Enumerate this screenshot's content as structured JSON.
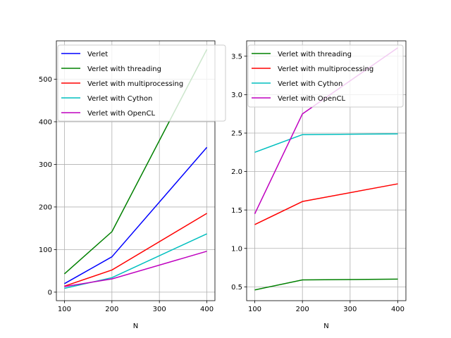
{
  "chart_data": [
    {
      "type": "line",
      "title": "",
      "xlabel": "N",
      "ylabel": "",
      "x": [
        100,
        200,
        400
      ],
      "xlim": [
        83,
        417
      ],
      "ylim": [
        -20,
        590
      ],
      "xticks": [
        100,
        200,
        300,
        400
      ],
      "yticks": [
        0,
        100,
        200,
        300,
        400,
        500
      ],
      "grid": true,
      "legend_position": "top-left",
      "series": [
        {
          "name": "Verlet",
          "color": "#0000ff",
          "values": [
            20,
            83,
            340
          ]
        },
        {
          "name": "Verlet with threading",
          "color": "#008000",
          "values": [
            43,
            142,
            570
          ]
        },
        {
          "name": "Verlet with multiprocessing",
          "color": "#ff0000",
          "values": [
            14,
            52,
            185
          ]
        },
        {
          "name": "Verlet with Cython",
          "color": "#00bfbf",
          "values": [
            9,
            34,
            137
          ]
        },
        {
          "name": "Verlet with OpenCL",
          "color": "#bf00bf",
          "values": [
            13,
            31,
            96
          ]
        }
      ]
    },
    {
      "type": "line",
      "title": "",
      "xlabel": "N",
      "ylabel": "",
      "x": [
        100,
        200,
        400
      ],
      "xlim": [
        83,
        417
      ],
      "ylim": [
        0.32,
        3.7
      ],
      "xticks": [
        100,
        200,
        300,
        400
      ],
      "yticks": [
        0.5,
        1.0,
        1.5,
        2.0,
        2.5,
        3.0,
        3.5
      ],
      "grid": true,
      "legend_position": "top-left",
      "series": [
        {
          "name": "Verlet with threading",
          "color": "#008000",
          "values": [
            0.46,
            0.59,
            0.6
          ]
        },
        {
          "name": "Verlet with multiprocessing",
          "color": "#ff0000",
          "values": [
            1.31,
            1.61,
            1.84
          ]
        },
        {
          "name": "Verlet with Cython",
          "color": "#00bfbf",
          "values": [
            2.25,
            2.48,
            2.49
          ]
        },
        {
          "name": "Verlet with OpenCL",
          "color": "#bf00bf",
          "values": [
            1.45,
            2.75,
            3.61
          ]
        }
      ]
    }
  ]
}
